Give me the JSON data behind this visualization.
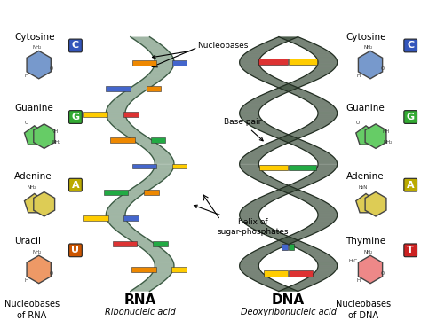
{
  "background_color": "#ffffff",
  "rna_label": "RNA",
  "rna_sublabel": "Ribonucleic acid",
  "dna_label": "DNA",
  "dna_sublabel": "Deoxyribonucleic acid",
  "left_nucleobases": [
    {
      "name": "Cytosine",
      "letter": "C",
      "letter_bg": "#3355bb",
      "struct_color": "#7799cc",
      "shape": "hex"
    },
    {
      "name": "Guanine",
      "letter": "G",
      "letter_bg": "#33aa33",
      "struct_color": "#66cc66",
      "shape": "fused"
    },
    {
      "name": "Adenine",
      "letter": "A",
      "letter_bg": "#bbaa00",
      "struct_color": "#ddcc55",
      "shape": "fused"
    },
    {
      "name": "Uracil",
      "letter": "U",
      "letter_bg": "#cc5500",
      "struct_color": "#ee9966",
      "shape": "hex"
    }
  ],
  "right_nucleobases": [
    {
      "name": "Cytosine",
      "letter": "C",
      "letter_bg": "#3355bb",
      "struct_color": "#7799cc",
      "shape": "hex"
    },
    {
      "name": "Guanine",
      "letter": "G",
      "letter_bg": "#33aa33",
      "struct_color": "#66cc66",
      "shape": "fused"
    },
    {
      "name": "Adenine",
      "letter": "A",
      "letter_bg": "#bbaa00",
      "struct_color": "#ddcc55",
      "shape": "fused"
    },
    {
      "name": "Thymine",
      "letter": "T",
      "letter_bg": "#cc2222",
      "struct_color": "#ee8888",
      "shape": "hex"
    }
  ],
  "left_bottom_label": "Nucleobases\nof RNA",
  "right_bottom_label": "Nucleobases\nof DNA",
  "rna_helix_fill": "#7a9980",
  "rna_helix_edge": "#3d5c45",
  "dna_helix_fill": "#3d4f3d",
  "dna_helix_edge": "#222e22",
  "base_colors_rna": [
    [
      "#ee8800",
      "#4466cc"
    ],
    [
      "#4466cc",
      "#ee8800"
    ],
    [
      "#ffcc00",
      "#dd3333"
    ],
    [
      "#ee8800",
      "#22aa44"
    ],
    [
      "#4466cc",
      "#ffcc00"
    ],
    [
      "#22aa44",
      "#ee8800"
    ],
    [
      "#ffcc00",
      "#4466cc"
    ],
    [
      "#dd3333",
      "#22aa44"
    ],
    [
      "#ee8800",
      "#ffcc00"
    ]
  ],
  "base_colors_dna": [
    [
      "#dd3333",
      "#ffcc00"
    ],
    [
      "#ffcc00",
      "#dd3333"
    ],
    [
      "#22aa44",
      "#4466cc"
    ],
    [
      "#dd3333",
      "#ffcc00"
    ],
    [
      "#ffcc00",
      "#22aa44"
    ],
    [
      "#22aa44",
      "#4466cc"
    ],
    [
      "#dd3333",
      "#ffcc00"
    ],
    [
      "#4466cc",
      "#22aa44"
    ],
    [
      "#ffcc00",
      "#dd3333"
    ]
  ],
  "annotation_nucleobases": "Nucleobases",
  "annotation_basepair": "Base pair",
  "annotation_helix": "helix of\nsugar-phosphates"
}
